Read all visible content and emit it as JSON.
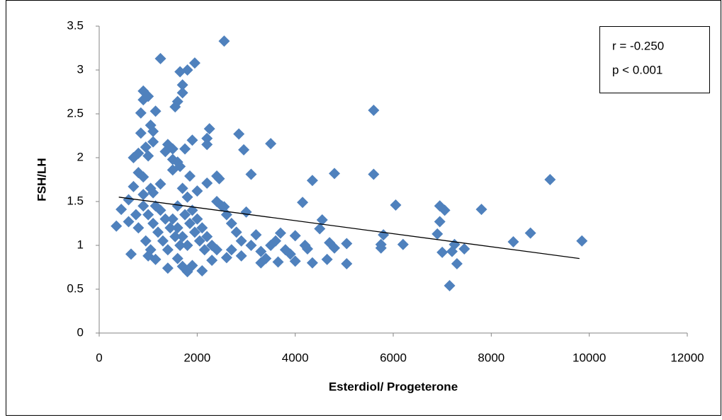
{
  "chart_data": {
    "type": "scatter",
    "x_label": "Esterdiol/ Progeterone",
    "y_label": "FSH/LH",
    "annotations": [
      "r = -0.250",
      "p < 0.001"
    ],
    "color": "#4f81bd",
    "xlim": [
      0,
      12000
    ],
    "xticks": [
      0,
      2000,
      4000,
      6000,
      8000,
      10000,
      12000
    ],
    "ylim": [
      0,
      3.5
    ],
    "yticks": [
      0,
      0.5,
      1,
      1.5,
      2,
      2.5,
      3,
      3.5
    ],
    "x": [
      2550,
      1250,
      1950,
      1800,
      1650,
      1700,
      1700,
      900,
      1000,
      900,
      1150,
      850,
      1600,
      1550,
      5600,
      2250,
      1050,
      1100,
      850,
      2850,
      2200,
      1900,
      3500,
      2200,
      1400,
      1100,
      1500,
      950,
      2950,
      1750,
      1350,
      700,
      800,
      1000,
      1500,
      1600,
      1650,
      1500,
      800,
      900,
      1850,
      2400,
      2450,
      3100,
      4800,
      5600,
      4350,
      9200,
      2200,
      1250,
      700,
      1050,
      1700,
      2000,
      1100,
      900,
      1800,
      600,
      4150,
      6050,
      6950,
      7050,
      7800,
      450,
      2550,
      3000,
      4550,
      5800,
      6950,
      6900,
      350,
      600,
      3200,
      3700,
      4000,
      4500,
      5750,
      5750,
      6200,
      7250,
      7450,
      7000,
      7200,
      8450,
      8800,
      9850,
      7300,
      7150,
      5050,
      5050,
      4650,
      4700,
      4350,
      4000,
      3650,
      3300,
      2600,
      2100,
      1800,
      1400,
      650,
      1000,
      1150,
      1600,
      2300,
      2900,
      3400,
      3900,
      4250,
      4800,
      1900,
      1700,
      900,
      1000,
      1100,
      1200,
      1300,
      1400,
      1500,
      1600,
      1700,
      1800,
      1900,
      2000,
      2100,
      2200,
      2300,
      2400,
      2500,
      2600,
      2700,
      2800,
      2900,
      3100,
      1250,
      1350,
      1450,
      1550,
      1650,
      1750,
      1850,
      1950,
      2050,
      2150,
      750,
      800,
      950,
      1050,
      1150,
      1600,
      2400,
      2700,
      3500,
      3800,
      4200,
      3300,
      3600
    ],
    "values": [
      3.33,
      3.13,
      3.08,
      3.0,
      2.98,
      2.83,
      2.74,
      2.76,
      2.7,
      2.66,
      2.53,
      2.51,
      2.64,
      2.58,
      2.54,
      2.33,
      2.37,
      2.3,
      2.28,
      2.27,
      2.22,
      2.2,
      2.16,
      2.15,
      2.15,
      2.18,
      2.1,
      2.12,
      2.09,
      2.1,
      2.07,
      2.0,
      2.05,
      2.02,
      1.98,
      1.95,
      1.9,
      1.86,
      1.83,
      1.78,
      1.79,
      1.79,
      1.76,
      1.81,
      1.82,
      1.81,
      1.74,
      1.75,
      1.71,
      1.7,
      1.67,
      1.65,
      1.65,
      1.62,
      1.6,
      1.58,
      1.55,
      1.52,
      1.49,
      1.46,
      1.45,
      1.4,
      1.41,
      1.41,
      1.44,
      1.38,
      1.29,
      1.12,
      1.27,
      1.13,
      1.22,
      1.27,
      1.12,
      1.14,
      1.11,
      1.19,
      1.01,
      0.97,
      1.01,
      1.01,
      0.96,
      0.92,
      0.93,
      1.04,
      1.14,
      1.05,
      0.79,
      0.54,
      1.02,
      0.79,
      0.84,
      1.03,
      0.8,
      0.82,
      0.81,
      0.8,
      0.86,
      0.71,
      0.7,
      0.74,
      0.9,
      0.88,
      0.84,
      0.85,
      0.83,
      0.88,
      0.85,
      0.9,
      0.96,
      0.97,
      0.77,
      0.76,
      1.45,
      1.35,
      1.25,
      1.15,
      1.05,
      0.95,
      1.3,
      1.2,
      1.1,
      1.0,
      1.4,
      1.3,
      1.2,
      1.1,
      1.0,
      0.95,
      1.45,
      1.35,
      1.25,
      1.15,
      1.05,
      1.0,
      1.4,
      1.3,
      1.2,
      1.1,
      1.0,
      1.35,
      1.25,
      1.15,
      1.05,
      0.95,
      1.35,
      1.2,
      1.05,
      0.95,
      1.45,
      1.45,
      1.5,
      0.95,
      1.0,
      0.95,
      1.0,
      0.93,
      1.05
    ],
    "trendline": {
      "x": [
        400,
        9800
      ],
      "values": [
        1.55,
        0.85
      ]
    }
  }
}
